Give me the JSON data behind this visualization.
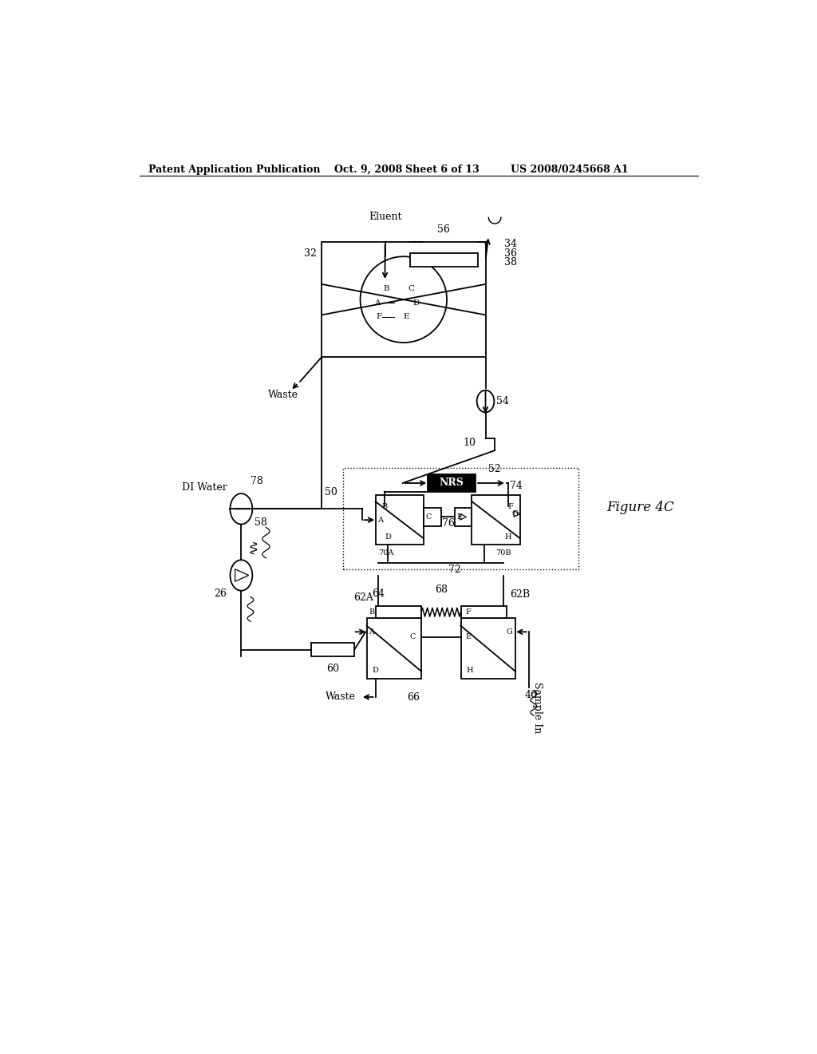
{
  "bg_color": "#ffffff",
  "header_text": "Patent Application Publication",
  "header_date": "Oct. 9, 2008",
  "header_sheet": "Sheet 6 of 13",
  "header_patent": "US 2008/0245668 A1",
  "figure_label": "Figure 4C",
  "lw": 1.3
}
